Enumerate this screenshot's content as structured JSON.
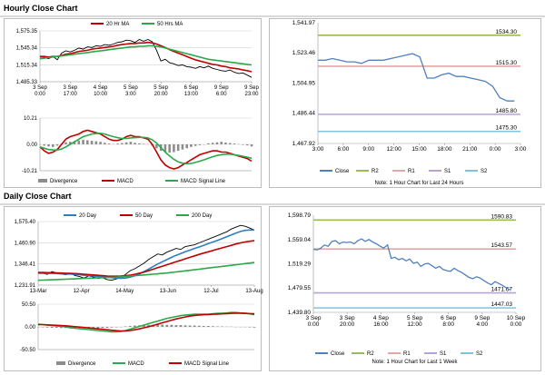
{
  "sections": {
    "hourly_title": "Hourly Close Chart",
    "daily_title": "Daily Close Chart"
  },
  "colors": {
    "close": "#000000",
    "ma_short": "#c00000",
    "ma_long": "#2aa84a",
    "ma_mid": "#2f7ec2",
    "macd": "#c00000",
    "signal": "#2aa84a",
    "divergence": "#8c8c8c",
    "pivot_close": "#4f81bd",
    "r2": "#9bbb59",
    "r1": "#e6a6a6",
    "s1": "#b8a3d6",
    "s2": "#7fc4dd",
    "grid": "#d0d0d0"
  },
  "chart_data": [
    {
      "id": "hourly_price",
      "type": "line",
      "legend": [
        "20 Hr MA",
        "50 Hrs MA"
      ],
      "yticks": [
        "1,575.35",
        "1,545.34",
        "1,515.34",
        "1,485.33"
      ],
      "ytick_values": [
        1575.35,
        1545.34,
        1515.34,
        1485.33
      ],
      "ylim": [
        1485.33,
        1575.35
      ],
      "xticks": [
        "3 Sep\n0:00",
        "3 Sep\n17:00",
        "4 Sep\n10:00",
        "5 Sep\n3:00",
        "5 Sep\n20:00",
        "6 Sep\n13:00",
        "9 Sep\n6:00",
        "9 Sep\n23:00"
      ],
      "series": [
        {
          "name": "Close",
          "values": [
            1527,
            1528,
            1526,
            1530,
            1524,
            1536,
            1540,
            1538,
            1541,
            1545,
            1543,
            1547,
            1546,
            1549,
            1548,
            1551,
            1550,
            1552,
            1555,
            1556,
            1559,
            1558,
            1555,
            1560,
            1557,
            1560,
            1556,
            1541,
            1522,
            1525,
            1519,
            1517,
            1514,
            1515,
            1512,
            1511,
            1509,
            1512,
            1510,
            1513,
            1509,
            1507,
            1505,
            1504,
            1506,
            1502,
            1500,
            1501,
            1497,
            1493
          ]
        },
        {
          "name": "20 Hr MA",
          "values": [
            1530,
            1530,
            1529,
            1530,
            1530,
            1532,
            1534,
            1535,
            1537,
            1539,
            1540,
            1541,
            1543,
            1544,
            1545,
            1546,
            1547,
            1548,
            1550,
            1551,
            1552,
            1553,
            1553,
            1554,
            1554,
            1555,
            1554,
            1552,
            1549,
            1546,
            1542,
            1539,
            1536,
            1533,
            1530,
            1527,
            1524,
            1522,
            1520,
            1518,
            1516,
            1515,
            1513,
            1512,
            1510,
            1509,
            1508,
            1506,
            1505,
            1503
          ]
        },
        {
          "name": "50 Hrs MA",
          "values": [
            1526,
            1527,
            1528,
            1529,
            1530,
            1531,
            1532,
            1533,
            1534,
            1535,
            1536,
            1537,
            1538,
            1539,
            1540,
            1541,
            1542,
            1543,
            1544,
            1545,
            1546,
            1547,
            1547,
            1548,
            1548,
            1549,
            1549,
            1548,
            1547,
            1545,
            1543,
            1541,
            1539,
            1537,
            1535,
            1533,
            1531,
            1529,
            1527,
            1525,
            1524,
            1523,
            1522,
            1521,
            1520,
            1519,
            1518,
            1517,
            1516,
            1515
          ]
        }
      ]
    },
    {
      "id": "hourly_macd",
      "type": "line",
      "legend": [
        "Divergence",
        "MACD",
        "MACD Signal Line"
      ],
      "yticks": [
        "10.21",
        "0.00",
        "-10.21"
      ],
      "ytick_values": [
        10.21,
        0,
        -10.21
      ],
      "ylim": [
        -10.21,
        10.21
      ],
      "series": [
        {
          "name": "Divergence",
          "values": [
            0,
            -0.5,
            -0.8,
            -1,
            -0.5,
            0.2,
            0.8,
            1,
            1.2,
            1.5,
            1.8,
            1.6,
            1.4,
            1.2,
            1,
            0.6,
            0.3,
            0.1,
            0.3,
            0.5,
            0.8,
            1,
            0.6,
            0.4,
            0.2,
            0.1,
            -0.5,
            -1.5,
            -2.5,
            -3,
            -3.2,
            -3,
            -2.5,
            -2,
            -1.5,
            -1,
            -0.6,
            -0.3,
            0,
            0.4,
            0.6,
            0.8,
            1,
            0.7,
            0.5,
            0.3,
            0.1,
            -0.2,
            -0.4,
            -0.8
          ]
        },
        {
          "name": "MACD",
          "values": [
            -1,
            -2.5,
            -3.5,
            -3,
            -2,
            0,
            2,
            3,
            3.5,
            4,
            5,
            5.5,
            5,
            4.5,
            4,
            3,
            2,
            1.5,
            1.5,
            2,
            3,
            3.5,
            3,
            3,
            2.5,
            2,
            0,
            -3,
            -6,
            -8,
            -9,
            -9.5,
            -9,
            -8,
            -7,
            -6,
            -5,
            -4,
            -3.5,
            -3,
            -2.5,
            -2.5,
            -3,
            -3,
            -3.5,
            -4,
            -4.5,
            -5,
            -5.5,
            -6.5
          ]
        },
        {
          "name": "MACD Signal Line",
          "values": [
            -1,
            -1.5,
            -2,
            -2.2,
            -2.2,
            -1.8,
            -1,
            0,
            1,
            2,
            3,
            3.5,
            4,
            4.2,
            4.3,
            4,
            3.5,
            3,
            2.6,
            2.3,
            2.3,
            2.5,
            2.6,
            2.7,
            2.7,
            2.5,
            1.8,
            0.5,
            -1.2,
            -3,
            -4.5,
            -5.8,
            -6.8,
            -7.3,
            -7.5,
            -7.4,
            -7,
            -6.5,
            -6,
            -5.4,
            -4.8,
            -4.3,
            -4,
            -3.8,
            -3.8,
            -4,
            -4.3,
            -4.6,
            -5,
            -5.4
          ]
        }
      ]
    },
    {
      "id": "hourly_pivot",
      "type": "line",
      "legend": [
        "Close",
        "R2",
        "R1",
        "S1",
        "S2"
      ],
      "yticks": [
        "1,541.97",
        "1,523.46",
        "1,504.95",
        "1,486.44",
        "1,467.92"
      ],
      "ytick_values": [
        1541.97,
        1523.46,
        1504.95,
        1486.44,
        1467.92
      ],
      "ylim": [
        1467.92,
        1541.97
      ],
      "xticks": [
        "3:00",
        "6:00",
        "9:00",
        "12:00",
        "15:00",
        "18:00",
        "21:00",
        "0:00",
        "3:00"
      ],
      "levels": [
        {
          "name": "R2",
          "value": 1534.3,
          "label": "1534.30"
        },
        {
          "name": "R1",
          "value": 1515.3,
          "label": "1515.30"
        },
        {
          "name": "S1",
          "value": 1485.8,
          "label": "1485.80"
        },
        {
          "name": "S2",
          "value": 1475.3,
          "label": "1475.30"
        }
      ],
      "close": [
        1519,
        1519,
        1520,
        1519,
        1518,
        1518,
        1517,
        1519,
        1519,
        1519,
        1520,
        1521,
        1522,
        1523,
        1521,
        1508,
        1508,
        1510,
        1511,
        1509,
        1509,
        1508,
        1507,
        1506,
        1503,
        1496,
        1494,
        1494
      ],
      "note": "Note: 1 Hour Chart for Last 24 Hours"
    },
    {
      "id": "daily_price",
      "type": "line",
      "legend": [
        "20 Day",
        "50 Day",
        "200 Day"
      ],
      "yticks": [
        "1,575.40",
        "1,460.90",
        "1,346.41",
        "1,231.91"
      ],
      "ytick_values": [
        1575.4,
        1460.9,
        1346.41,
        1231.91
      ],
      "ylim": [
        1231.91,
        1575.4
      ],
      "xticks": [
        "13-Mar",
        "12-Apr",
        "14-May",
        "13-Jun",
        "12-Jul",
        "13-Aug"
      ],
      "series": [
        {
          "name": "Close",
          "values": [
            1300,
            1295,
            1290,
            1305,
            1298,
            1292,
            1288,
            1296,
            1284,
            1278,
            1270,
            1282,
            1276,
            1268,
            1272,
            1262,
            1258,
            1266,
            1272,
            1290,
            1310,
            1320,
            1335,
            1350,
            1370,
            1385,
            1400,
            1395,
            1410,
            1420,
            1430,
            1425,
            1440,
            1445,
            1450,
            1460,
            1470,
            1480,
            1490,
            1500,
            1510,
            1520,
            1535,
            1545,
            1555,
            1550,
            1540,
            1530
          ]
        },
        {
          "name": "20 Day",
          "values": [
            1296,
            1296,
            1295,
            1295,
            1294,
            1293,
            1292,
            1292,
            1290,
            1288,
            1285,
            1283,
            1281,
            1279,
            1277,
            1275,
            1272,
            1270,
            1269,
            1270,
            1275,
            1282,
            1292,
            1305,
            1318,
            1332,
            1346,
            1358,
            1370,
            1382,
            1393,
            1402,
            1412,
            1421,
            1430,
            1438,
            1447,
            1456,
            1465,
            1474,
            1483,
            1493,
            1503,
            1513,
            1522,
            1528,
            1530,
            1530
          ]
        },
        {
          "name": "50 Day",
          "values": [
            1300,
            1300,
            1299,
            1299,
            1298,
            1297,
            1296,
            1295,
            1294,
            1293,
            1291,
            1289,
            1287,
            1285,
            1283,
            1281,
            1280,
            1280,
            1281,
            1283,
            1286,
            1290,
            1296,
            1302,
            1310,
            1318,
            1326,
            1334,
            1342,
            1350,
            1358,
            1366,
            1374,
            1382,
            1390,
            1398,
            1405,
            1412,
            1419,
            1426,
            1433,
            1440,
            1447,
            1454,
            1460,
            1465,
            1469,
            1472
          ]
        },
        {
          "name": "200 Day",
          "values": [
            1258,
            1259,
            1260,
            1261,
            1262,
            1263,
            1264,
            1265,
            1266,
            1267,
            1268,
            1269,
            1270,
            1271,
            1272,
            1273,
            1274,
            1275,
            1277,
            1279,
            1281,
            1283,
            1285,
            1287,
            1289,
            1291,
            1293,
            1295,
            1297,
            1300,
            1303,
            1306,
            1309,
            1312,
            1315,
            1318,
            1321,
            1324,
            1327,
            1330,
            1333,
            1336,
            1339,
            1342,
            1345,
            1348,
            1351,
            1354
          ]
        }
      ]
    },
    {
      "id": "daily_macd",
      "type": "line",
      "legend": [
        "Divergence",
        "MACD",
        "MACD Signal Line"
      ],
      "yticks": [
        "50.50",
        "0.00",
        "-50.50"
      ],
      "ytick_values": [
        50.5,
        0,
        -50.5
      ],
      "ylim": [
        -50.5,
        50.5
      ],
      "series": [
        {
          "name": "Divergence",
          "values": [
            0,
            -1,
            -1.5,
            -2,
            -2,
            -2.5,
            -2.5,
            -3,
            -3,
            -3,
            -3.5,
            -3.5,
            -3,
            -3,
            -2.5,
            -2,
            -1.5,
            -1,
            0,
            1,
            2,
            3,
            3.5,
            4,
            4.5,
            5,
            5,
            5,
            4.5,
            4.5,
            4,
            4,
            3.5,
            3,
            3,
            2.5,
            2,
            2,
            1.5,
            1,
            1,
            0.5,
            0.5,
            0,
            0,
            -0.5,
            -1,
            -1.5
          ]
        },
        {
          "name": "MACD",
          "values": [
            6,
            5,
            4,
            3,
            2,
            1,
            0,
            -2,
            -3,
            -4,
            -5,
            -6,
            -7,
            -8,
            -9,
            -10,
            -11,
            -11,
            -10,
            -8,
            -5,
            -2,
            1,
            4,
            7,
            10,
            13,
            16,
            19,
            21,
            23,
            25,
            26,
            27,
            28,
            28,
            28,
            28,
            29,
            30,
            30,
            31,
            32,
            32,
            31,
            30,
            29,
            27
          ]
        },
        {
          "name": "MACD Signal Line",
          "values": [
            5,
            5,
            4.5,
            4,
            3.5,
            3,
            2.5,
            1.5,
            0.5,
            -0.5,
            -1.5,
            -2.5,
            -3.5,
            -4.5,
            -5.5,
            -6.5,
            -7.5,
            -8.5,
            -9,
            -9,
            -8,
            -6.5,
            -4.5,
            -2,
            0.5,
            3,
            6,
            9,
            12,
            15,
            17.5,
            20,
            22,
            24,
            25.5,
            26.5,
            27,
            27.5,
            28,
            28.5,
            29,
            29.5,
            30,
            30.5,
            30.5,
            30,
            29.5,
            29
          ]
        }
      ]
    },
    {
      "id": "daily_pivot",
      "type": "line",
      "legend": [
        "Close",
        "R2",
        "R1",
        "S1",
        "S2"
      ],
      "yticks": [
        "1,598.79",
        "1,559.04",
        "1,519.29",
        "1,479.55",
        "1,439.80"
      ],
      "ytick_values": [
        1598.79,
        1559.04,
        1519.29,
        1479.55,
        1439.8
      ],
      "ylim": [
        1439.8,
        1598.79
      ],
      "xticks": [
        "3 Sep\n0:00",
        "3 Sep\n20:00",
        "4 Sep\n16:00",
        "5 Sep\n12:00",
        "6 Sep\n8:00",
        "9 Sep\n4:00",
        "10 Sep\n0:00"
      ],
      "levels": [
        {
          "name": "R2",
          "value": 1590.83,
          "label": "1590.83"
        },
        {
          "name": "R1",
          "value": 1543.57,
          "label": "1543.57"
        },
        {
          "name": "S1",
          "value": 1471.67,
          "label": "1471.67"
        },
        {
          "name": "S2",
          "value": 1447.03,
          "label": "1447.03"
        }
      ],
      "close": [
        1543,
        1542,
        1545,
        1550,
        1548,
        1556,
        1557,
        1552,
        1555,
        1554,
        1555,
        1552,
        1557,
        1560,
        1556,
        1559,
        1555,
        1552,
        1548,
        1545,
        1550,
        1528,
        1530,
        1526,
        1528,
        1524,
        1527,
        1520,
        1522,
        1515,
        1519,
        1520,
        1516,
        1512,
        1515,
        1510,
        1508,
        1507,
        1512,
        1508,
        1505,
        1501,
        1497,
        1495,
        1498,
        1496,
        1492,
        1488,
        1485,
        1490,
        1487,
        1484,
        1480,
        1477
      ],
      "note": "Note: 1 Hour Chart for Last 1 Week"
    }
  ]
}
